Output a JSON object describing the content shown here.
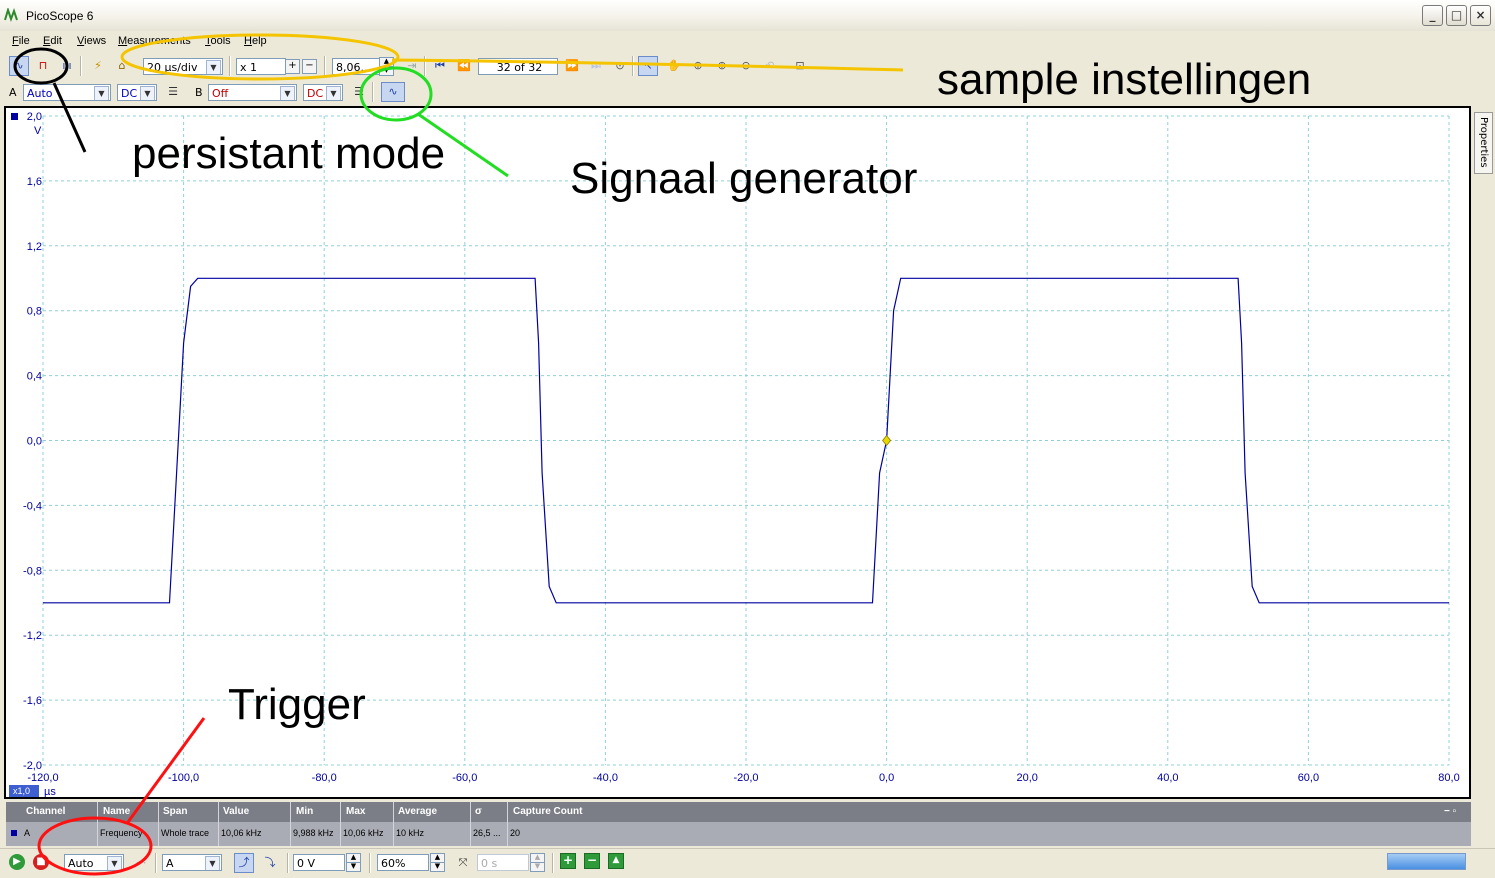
{
  "window": {
    "title": "PicoScope 6",
    "buttons": [
      "_",
      "□",
      "×"
    ]
  },
  "menu": [
    {
      "label": "File",
      "u": "F",
      "rest": "ile"
    },
    {
      "label": "Edit",
      "u": "E",
      "rest": "dit"
    },
    {
      "label": "Views",
      "u": "V",
      "rest": "iews"
    },
    {
      "label": "Measurements",
      "u": "M",
      "rest": "easurements"
    },
    {
      "label": "Tools",
      "u": "T",
      "rest": "ools"
    },
    {
      "label": "Help",
      "u": "H",
      "rest": "elp"
    }
  ],
  "toolbar1": {
    "timebase": "20 µs/div",
    "zoom": "x 1",
    "samples": "8,06...",
    "buffer": "32 of 32"
  },
  "toolbar2": {
    "channel_a_label": "A",
    "channel_a_range": "Auto",
    "channel_a_coupling": "DC",
    "channel_b_label": "B",
    "channel_b_range": "Off",
    "channel_b_coupling": "DC"
  },
  "props_tab": "Properties",
  "plot": {
    "y_unit": "V",
    "y_ticks": [
      "2,0",
      "1,6",
      "1,2",
      "0,8",
      "0,4",
      "0,0",
      "-0,4",
      "-0,8",
      "-1,2",
      "-1,6",
      "-2,0"
    ],
    "x_ticks": [
      "-120,0",
      "-100,0",
      "-80,0",
      "-60,0",
      "-40,0",
      "-20,0",
      "0,0",
      "20,0",
      "40,0",
      "60,0",
      "80,0"
    ],
    "x_scale_badge": "x1,0",
    "x_unit": "µs",
    "trace_color": "#0000a0",
    "grid_color": "#8fd0d8",
    "trigger_marker_color": "#e8d800"
  },
  "chart_data": {
    "type": "line",
    "xlabel": "µs",
    "ylabel": "V",
    "xlim": [
      -120,
      80
    ],
    "ylim": [
      -2.0,
      2.0
    ],
    "grid": true,
    "series": [
      {
        "name": "A",
        "x": [
          -120,
          -102,
          -101,
          -100,
          -99,
          -98,
          -50,
          -49.5,
          -49,
          -48,
          -47,
          -2,
          -1,
          0,
          1,
          2,
          50,
          50.5,
          51,
          52,
          53,
          80
        ],
        "y": [
          -1.0,
          -1.0,
          -0.2,
          0.6,
          0.95,
          1.0,
          1.0,
          0.6,
          -0.2,
          -0.9,
          -1.0,
          -1.0,
          -0.2,
          0.0,
          0.8,
          1.0,
          1.0,
          0.6,
          -0.2,
          -0.9,
          -1.0,
          -1.0
        ]
      }
    ]
  },
  "measurements": {
    "headers": [
      "Channel",
      "Name",
      "Span",
      "Value",
      "Min",
      "Max",
      "Average",
      "σ",
      "Capture Count"
    ],
    "row": [
      "A",
      "Frequency",
      "Whole trace",
      "10,06 kHz",
      "9,988 kHz",
      "10,06 kHz",
      "10 kHz",
      "26,5 ...",
      "20"
    ],
    "corner": "− ▫"
  },
  "bottombar": {
    "trigger_mode": "Auto",
    "trigger_source": "A",
    "threshold": "0 V",
    "pretrigger": "60%",
    "delay": "0 s"
  },
  "annotations": {
    "sample": "sample instellingen",
    "persistent": "persistant mode",
    "siggen": "Signaal generator",
    "trigger": "Trigger"
  }
}
